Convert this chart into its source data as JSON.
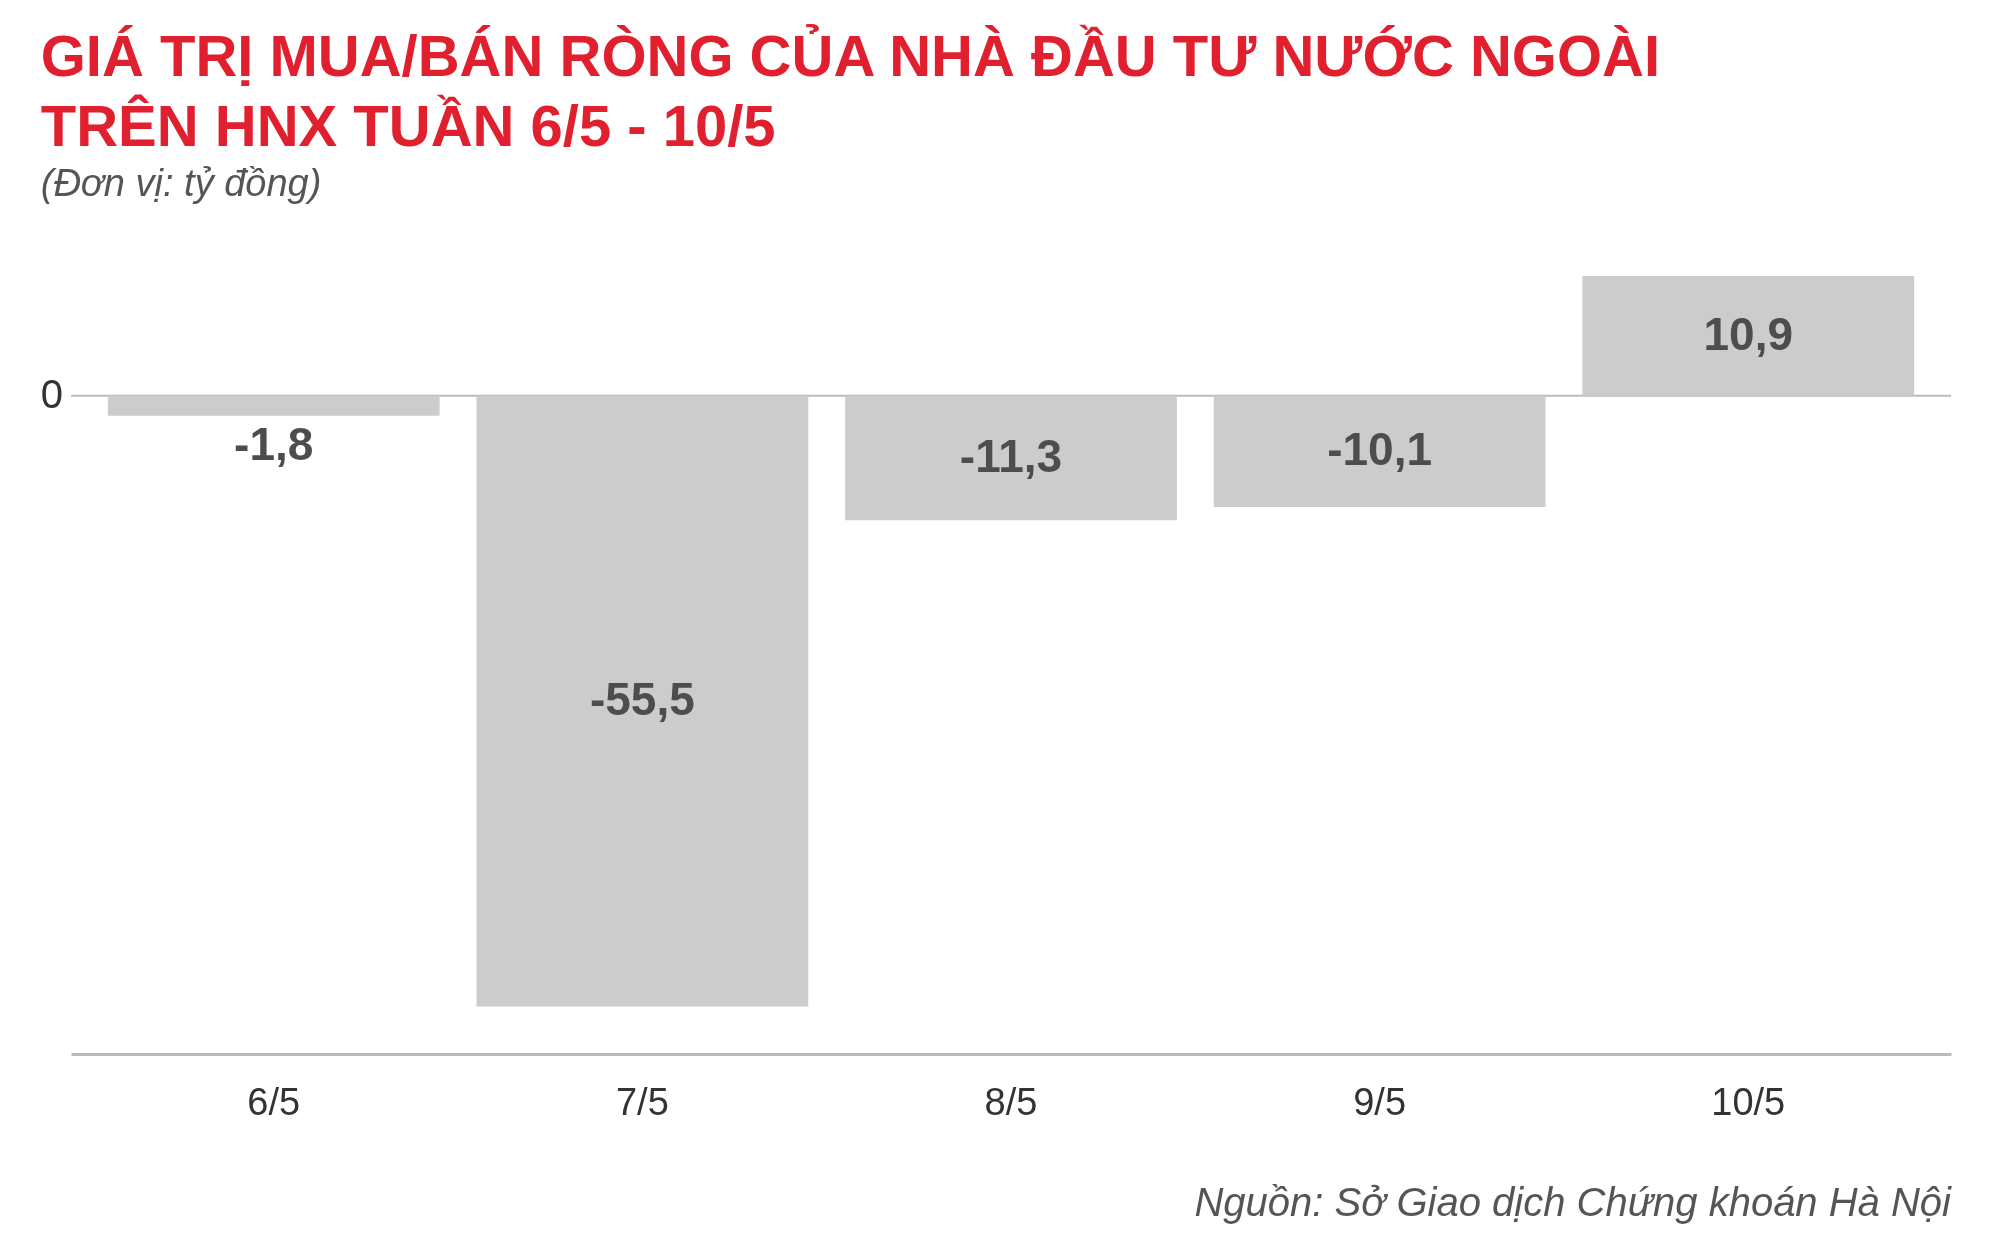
{
  "chart_data": {
    "type": "bar",
    "title": [
      "GIÁ TRỊ MUA/BÁN RÒNG CỦA NHÀ ĐẦU TƯ NƯỚC NGOÀI",
      "TRÊN HNX TUẦN 6/5 - 10/5"
    ],
    "subtitle": "(Đơn vị: tỷ đồng)",
    "categories": [
      "6/5",
      "7/5",
      "8/5",
      "9/5",
      "10/5"
    ],
    "values": [
      -1.8,
      -55.5,
      -11.3,
      -10.1,
      10.9
    ],
    "value_labels": [
      "-1,8",
      "-55,5",
      "-11,3",
      "-10,1",
      "10,9"
    ],
    "color": "#cccccc",
    "ref_lines": [
      {
        "axis": "y",
        "value": 0,
        "label": "0",
        "color": "#bbbbbb"
      }
    ],
    "annotations": [
      "Nguồn: Sở Giao dịch Chứng khoán Hà Nội"
    ]
  }
}
